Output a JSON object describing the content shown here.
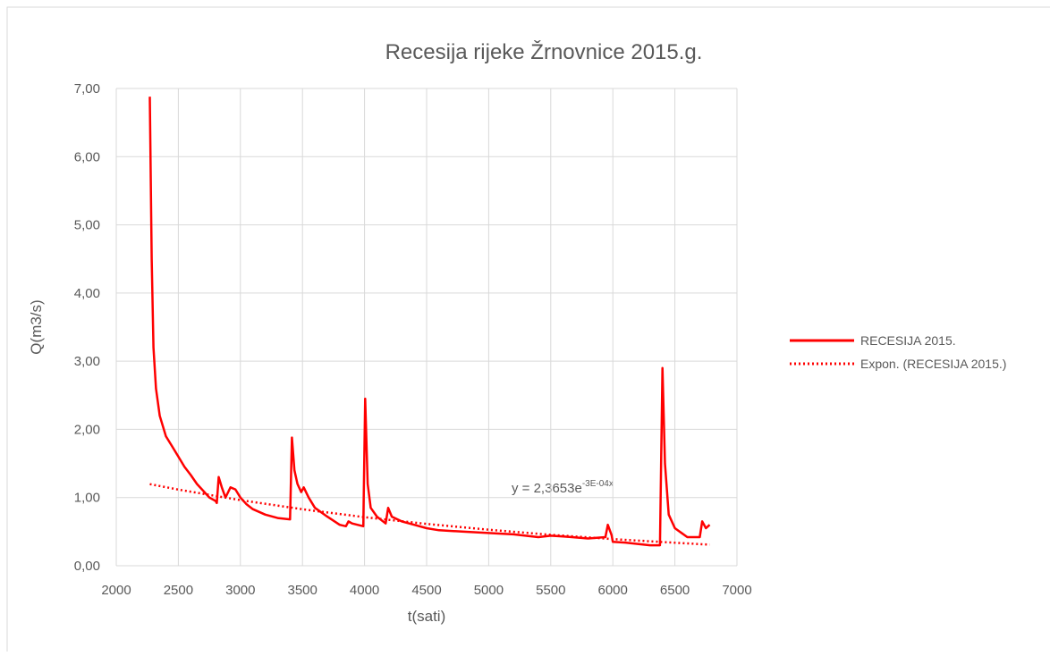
{
  "chart_data": {
    "type": "line",
    "title": "Recesija rijeke Žrnovnice 2015.g.",
    "x_label": "t(sati)",
    "y_label": "Q(m3/s)",
    "xlim": [
      2000,
      7000
    ],
    "ylim": [
      0,
      7
    ],
    "xticks": [
      2000,
      2500,
      3000,
      3500,
      4000,
      4500,
      5000,
      5500,
      6000,
      6500,
      7000
    ],
    "yticks": [
      {
        "value": 0,
        "label": "0,00"
      },
      {
        "value": 1,
        "label": "1,00"
      },
      {
        "value": 2,
        "label": "2,00"
      },
      {
        "value": 3,
        "label": "3,00"
      },
      {
        "value": 4,
        "label": "4,00"
      },
      {
        "value": 5,
        "label": "5,00"
      },
      {
        "value": 6,
        "label": "6,00"
      },
      {
        "value": 7,
        "label": "7,00"
      }
    ],
    "grid": true,
    "legend": "right",
    "annotation": {
      "text": "y = 2,3653e",
      "exponent": "-3E-04x"
    },
    "series": [
      {
        "name": "RECESIJA 2015.",
        "color": "#ff0000",
        "style": "solid",
        "x": [
          2270,
          2285,
          2300,
          2320,
          2350,
          2400,
          2450,
          2500,
          2550,
          2600,
          2650,
          2700,
          2750,
          2800,
          2810,
          2825,
          2850,
          2880,
          2920,
          2960,
          3000,
          3050,
          3100,
          3200,
          3300,
          3400,
          3415,
          3435,
          3460,
          3490,
          3510,
          3550,
          3600,
          3700,
          3800,
          3850,
          3870,
          3900,
          3990,
          4005,
          4025,
          4050,
          4100,
          4170,
          4190,
          4220,
          4300,
          4400,
          4500,
          4600,
          4800,
          5000,
          5200,
          5400,
          5500,
          5600,
          5800,
          5940,
          5960,
          5990,
          6000,
          6100,
          6200,
          6300,
          6380,
          6400,
          6420,
          6450,
          6500,
          6600,
          6700,
          6720,
          6750,
          6780
        ],
        "values": [
          6.88,
          4.5,
          3.2,
          2.6,
          2.2,
          1.9,
          1.75,
          1.6,
          1.45,
          1.33,
          1.2,
          1.1,
          1.0,
          0.95,
          0.92,
          1.3,
          1.15,
          1.0,
          1.15,
          1.12,
          1.0,
          0.9,
          0.83,
          0.75,
          0.7,
          0.68,
          1.88,
          1.4,
          1.2,
          1.08,
          1.15,
          1.0,
          0.85,
          0.72,
          0.6,
          0.58,
          0.65,
          0.62,
          0.58,
          2.45,
          1.2,
          0.85,
          0.72,
          0.62,
          0.85,
          0.72,
          0.65,
          0.6,
          0.55,
          0.52,
          0.5,
          0.48,
          0.46,
          0.42,
          0.44,
          0.43,
          0.4,
          0.42,
          0.6,
          0.45,
          0.35,
          0.34,
          0.32,
          0.3,
          0.3,
          2.9,
          1.5,
          0.75,
          0.55,
          0.42,
          0.42,
          0.65,
          0.55,
          0.6
        ]
      },
      {
        "name": "Expon. (RECESIJA 2015.)",
        "color": "#ff0000",
        "style": "dotted",
        "x": [
          2270,
          2500,
          3000,
          3500,
          4000,
          4500,
          5000,
          5500,
          6000,
          6500,
          6780
        ],
        "values": [
          1.197,
          1.117,
          0.962,
          0.828,
          0.712,
          0.613,
          0.528,
          0.454,
          0.391,
          0.337,
          0.309
        ]
      }
    ]
  }
}
